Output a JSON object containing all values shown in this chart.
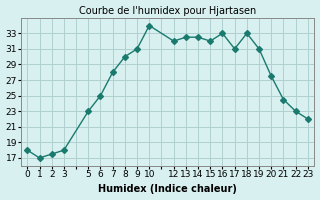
{
  "x": [
    0,
    1,
    2,
    3,
    5,
    6,
    7,
    8,
    9,
    10,
    12,
    13,
    14,
    15,
    16,
    17,
    18,
    19,
    20,
    21,
    22,
    23
  ],
  "y": [
    18,
    17,
    17.5,
    18,
    23,
    25,
    28,
    30,
    31,
    34,
    32,
    32.5,
    32.5,
    32,
    33,
    31,
    33,
    31,
    27.5,
    24.5,
    23,
    22
  ],
  "line_color": "#1a7a6e",
  "marker": "D",
  "marker_size": 3,
  "bg_color": "#d8f0f0",
  "grid_color": "#b0d0d0",
  "title": "Courbe de l'humidex pour Hjartasen",
  "xlabel": "Humidex (Indice chaleur)",
  "ylabel": "",
  "xlim": [
    -0.5,
    23.5
  ],
  "ylim": [
    16,
    35
  ],
  "yticks": [
    17,
    19,
    21,
    23,
    25,
    27,
    29,
    31,
    33
  ],
  "all_xticks": [
    0,
    1,
    2,
    3,
    4,
    5,
    6,
    7,
    8,
    9,
    10,
    11,
    12,
    13,
    14,
    15,
    16,
    17,
    18,
    19,
    20,
    21,
    22,
    23
  ],
  "shown_xticks": [
    0,
    1,
    2,
    3,
    5,
    6,
    7,
    8,
    9,
    10,
    12,
    13,
    14,
    15,
    16,
    17,
    18,
    19,
    20,
    21,
    22,
    23
  ],
  "title_fontsize": 7,
  "axis_fontsize": 7,
  "tick_fontsize": 6.5
}
